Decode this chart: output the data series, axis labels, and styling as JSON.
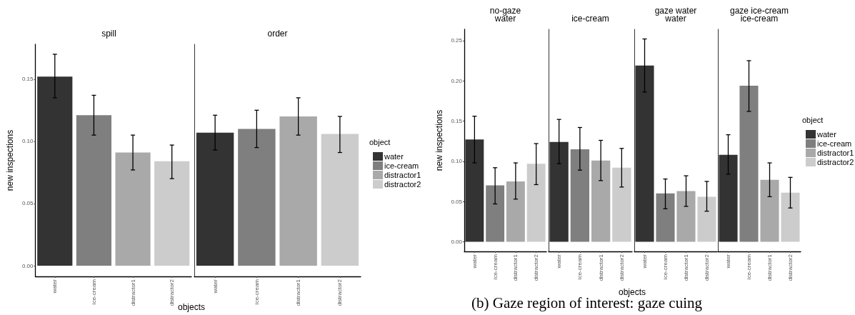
{
  "chart_data": [
    {
      "type": "bar",
      "title": "spill",
      "ylabel": "new inspections",
      "xlabel": "objects",
      "categories": [
        "water",
        "ice-cream",
        "distractor1",
        "distractor2"
      ],
      "stacked": true,
      "series": [
        {
          "color": "#333333",
          "values": [
            0.152,
            null,
            null,
            null
          ],
          "errors": [
            [
              0.135,
              0.17
            ],
            null,
            null,
            null
          ]
        },
        {
          "color": "#7f7f7f",
          "values": [
            null,
            0.121,
            null,
            null
          ],
          "errors": [
            null,
            [
              0.105,
              0.137
            ],
            null,
            null
          ]
        },
        {
          "color": "#a9a9a9",
          "values": [
            null,
            null,
            0.091,
            null
          ],
          "errors": [
            null,
            null,
            [
              0.077,
              0.105
            ],
            null
          ]
        },
        {
          "color": "#cccccc",
          "values": [
            null,
            null,
            null,
            0.084
          ],
          "errors": [
            null,
            null,
            null,
            [
              0.07,
              0.097
            ]
          ]
        }
      ],
      "ylim": [
        -0.0086,
        0.178
      ],
      "yticks": [
        {
          "value": 0,
          "label": "0.00"
        },
        0.05,
        {
          "value": 0.1,
          "label": "0.10"
        },
        0.15
      ]
    },
    {
      "type": "bar",
      "title": "order",
      "categories": [
        "water",
        "ice-cream",
        "distractor1",
        "distractor2"
      ],
      "stacked": true,
      "series": [
        {
          "name": "water",
          "color": "#333333",
          "values": [
            0.107,
            null,
            null,
            null
          ],
          "errors": [
            [
              0.093,
              0.121
            ],
            null,
            null,
            null
          ]
        },
        {
          "name": "ice-cream",
          "color": "#7f7f7f",
          "values": [
            null,
            0.11,
            null,
            null
          ],
          "errors": [
            null,
            [
              0.095,
              0.125
            ],
            null,
            null
          ]
        },
        {
          "name": "distractor1",
          "color": "#a9a9a9",
          "values": [
            null,
            null,
            0.12,
            null
          ],
          "errors": [
            null,
            null,
            [
              0.105,
              0.135
            ],
            null
          ]
        },
        {
          "name": "distractor2",
          "color": "#cccccc",
          "values": [
            null,
            null,
            null,
            0.106
          ],
          "errors": [
            null,
            null,
            null,
            [
              0.091,
              0.12
            ]
          ]
        }
      ],
      "ylim": [
        -0.0086,
        0.178
      ],
      "tick_labels": "x",
      "legend": "right",
      "legend_title": "object"
    },
    {
      "type": "bar",
      "subtitle": "no-gaze",
      "title": "water",
      "ylabel": "new inspections",
      "categories": [
        "water",
        "ice-cream",
        "distractor1",
        "distractor2"
      ],
      "stacked": true,
      "series": [
        {
          "color": "#333333",
          "values": [
            0.127,
            null,
            null,
            null
          ],
          "errors": [
            [
              0.098,
              0.156
            ],
            null,
            null,
            null
          ]
        },
        {
          "color": "#7f7f7f",
          "values": [
            null,
            0.07,
            null,
            null
          ],
          "errors": [
            null,
            [
              0.047,
              0.092
            ],
            null,
            null
          ]
        },
        {
          "color": "#a9a9a9",
          "values": [
            null,
            null,
            0.075,
            null
          ],
          "errors": [
            null,
            null,
            [
              0.053,
              0.098
            ],
            null
          ]
        },
        {
          "color": "#cccccc",
          "values": [
            null,
            null,
            null,
            0.097
          ],
          "errors": [
            null,
            null,
            null,
            [
              0.071,
              0.122
            ]
          ]
        }
      ],
      "ylim": [
        -0.012,
        0.264
      ],
      "yticks": [
        {
          "value": 0,
          "label": "0.00"
        },
        0.05,
        {
          "value": 0.1,
          "label": "0.10"
        },
        0.15,
        {
          "value": 0.2,
          "label": "0.20"
        },
        0.25
      ],
      "annotations": [
        "(b) Gaze region of interest: gaze cuing"
      ]
    },
    {
      "type": "bar",
      "title": "ice-cream",
      "xlabel": "objects",
      "categories": [
        "water",
        "ice-cream",
        "distractor1",
        "distractor2"
      ],
      "stacked": true,
      "series": [
        {
          "color": "#333333",
          "values": [
            0.124,
            null,
            null,
            null
          ],
          "errors": [
            [
              0.097,
              0.152
            ],
            null,
            null,
            null
          ]
        },
        {
          "color": "#7f7f7f",
          "values": [
            null,
            0.115,
            null,
            null
          ],
          "errors": [
            null,
            [
              0.089,
              0.142
            ],
            null,
            null
          ]
        },
        {
          "color": "#a9a9a9",
          "values": [
            null,
            null,
            0.101,
            null
          ],
          "errors": [
            null,
            null,
            [
              0.076,
              0.126
            ],
            null
          ]
        },
        {
          "color": "#cccccc",
          "values": [
            null,
            null,
            null,
            0.092
          ],
          "errors": [
            null,
            null,
            null,
            [
              0.068,
              0.116
            ]
          ]
        }
      ],
      "ylim": [
        -0.012,
        0.264
      ],
      "tick_labels": "x"
    },
    {
      "type": "bar",
      "subtitle": "gaze water",
      "title": "water",
      "categories": [
        "water",
        "ice-cream",
        "distractor1",
        "distractor2"
      ],
      "stacked": true,
      "series": [
        {
          "color": "#333333",
          "values": [
            0.219,
            null,
            null,
            null
          ],
          "errors": [
            [
              0.186,
              0.252
            ],
            null,
            null,
            null
          ]
        },
        {
          "color": "#7f7f7f",
          "values": [
            null,
            0.06,
            null,
            null
          ],
          "errors": [
            null,
            [
              0.041,
              0.078
            ],
            null,
            null
          ]
        },
        {
          "color": "#a9a9a9",
          "values": [
            null,
            null,
            0.063,
            null
          ],
          "errors": [
            null,
            null,
            [
              0.044,
              0.082
            ],
            null
          ]
        },
        {
          "color": "#cccccc",
          "values": [
            null,
            null,
            null,
            0.056
          ],
          "errors": [
            null,
            null,
            null,
            [
              0.038,
              0.075
            ]
          ]
        }
      ],
      "ylim": [
        -0.012,
        0.264
      ],
      "tick_labels": "x"
    },
    {
      "type": "bar",
      "subtitle": "gaze ice-cream",
      "title": "ice-cream",
      "categories": [
        "water",
        "ice-cream",
        "distractor1",
        "distractor2"
      ],
      "stacked": true,
      "series": [
        {
          "name": "water",
          "color": "#333333",
          "values": [
            0.108,
            null,
            null,
            null
          ],
          "errors": [
            [
              0.084,
              0.133
            ],
            null,
            null,
            null
          ]
        },
        {
          "name": "ice-cream",
          "color": "#7f7f7f",
          "values": [
            null,
            0.194,
            null,
            null
          ],
          "errors": [
            null,
            [
              0.162,
              0.225
            ],
            null,
            null
          ]
        },
        {
          "name": "distractor1",
          "color": "#a9a9a9",
          "values": [
            null,
            null,
            0.077,
            null
          ],
          "errors": [
            null,
            null,
            [
              0.056,
              0.098
            ],
            null
          ]
        },
        {
          "name": "distractor2",
          "color": "#cccccc",
          "values": [
            null,
            null,
            null,
            0.061
          ],
          "errors": [
            null,
            null,
            null,
            [
              0.042,
              0.08
            ]
          ]
        }
      ],
      "ylim": [
        -0.012,
        0.264
      ],
      "tick_labels": "x",
      "legend": "right",
      "legend_title": "object"
    }
  ]
}
